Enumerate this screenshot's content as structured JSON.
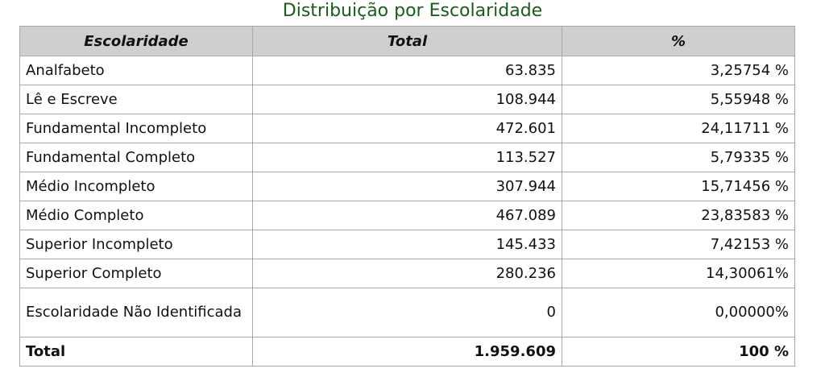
{
  "title": "Distribuição por Escolaridade",
  "table": {
    "headers": [
      "Escolaridade",
      "Total",
      "%"
    ],
    "rows": [
      {
        "name": "Analfabeto",
        "total": "63.835",
        "pct": "3,25754 %"
      },
      {
        "name": "Lê e Escreve",
        "total": "108.944",
        "pct": "5,55948 %"
      },
      {
        "name": "Fundamental Incompleto",
        "total": "472.601",
        "pct": "24,11711 %"
      },
      {
        "name": "Fundamental Completo",
        "total": "113.527",
        "pct": "5,79335 %"
      },
      {
        "name": "Médio Incompleto",
        "total": "307.944",
        "pct": "15,71456 %"
      },
      {
        "name": "Médio Completo",
        "total": "467.089",
        "pct": "23,83583 %"
      },
      {
        "name": "Superior Incompleto",
        "total": "145.433",
        "pct": "7,42153 %"
      },
      {
        "name": "Superior Completo",
        "total": "280.236",
        "pct": "14,30061%"
      },
      {
        "name": "Escolaridade Não Identificada",
        "total": "0",
        "pct": "0,00000%"
      }
    ],
    "total_row": {
      "name": "Total",
      "total": "1.959.609",
      "pct": "100 %"
    }
  }
}
